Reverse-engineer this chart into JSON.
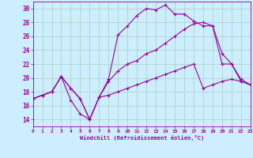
{
  "xlabel": "Windchill (Refroidissement éolien,°C)",
  "xlim": [
    0,
    23
  ],
  "ylim": [
    13,
    31
  ],
  "yticks": [
    14,
    16,
    18,
    20,
    22,
    24,
    26,
    28,
    30
  ],
  "xticks": [
    0,
    1,
    2,
    3,
    4,
    5,
    6,
    7,
    8,
    9,
    10,
    11,
    12,
    13,
    14,
    15,
    16,
    17,
    18,
    19,
    20,
    21,
    22,
    23
  ],
  "bg_color": "#cceeff",
  "grid_color": "#aaccbb",
  "line_color": "#990099",
  "line1_x": [
    0,
    1,
    2,
    3,
    4,
    5,
    6,
    7,
    8,
    9,
    10,
    11,
    12,
    13,
    14,
    15,
    16,
    17,
    18,
    19,
    20,
    21,
    22,
    23
  ],
  "line1_y": [
    17.0,
    17.5,
    18.0,
    20.2,
    16.8,
    14.8,
    14.0,
    17.2,
    19.8,
    26.2,
    27.5,
    29.0,
    30.0,
    29.8,
    30.5,
    29.2,
    29.2,
    28.2,
    27.5,
    27.5,
    22.0,
    22.0,
    19.5,
    19.0
  ],
  "line2_x": [
    0,
    1,
    2,
    3,
    4,
    5,
    6,
    7,
    8,
    9,
    10,
    11,
    12,
    13,
    14,
    15,
    16,
    17,
    18,
    19,
    20,
    21,
    22,
    23
  ],
  "line2_y": [
    17.0,
    17.5,
    18.0,
    20.2,
    18.5,
    17.0,
    14.0,
    17.2,
    19.5,
    21.0,
    22.0,
    22.5,
    23.5,
    24.0,
    25.0,
    26.0,
    27.0,
    27.8,
    28.0,
    27.5,
    23.5,
    22.0,
    19.8,
    19.0
  ],
  "line3_x": [
    0,
    1,
    2,
    3,
    4,
    5,
    6,
    7,
    8,
    9,
    10,
    11,
    12,
    13,
    14,
    15,
    16,
    17,
    18,
    19,
    20,
    21,
    22,
    23
  ],
  "line3_y": [
    17.0,
    17.5,
    18.0,
    20.2,
    18.5,
    17.0,
    14.0,
    17.2,
    17.5,
    18.0,
    18.5,
    19.0,
    19.5,
    20.0,
    20.5,
    21.0,
    21.5,
    22.0,
    18.5,
    19.0,
    19.5,
    19.8,
    19.5,
    19.0
  ]
}
